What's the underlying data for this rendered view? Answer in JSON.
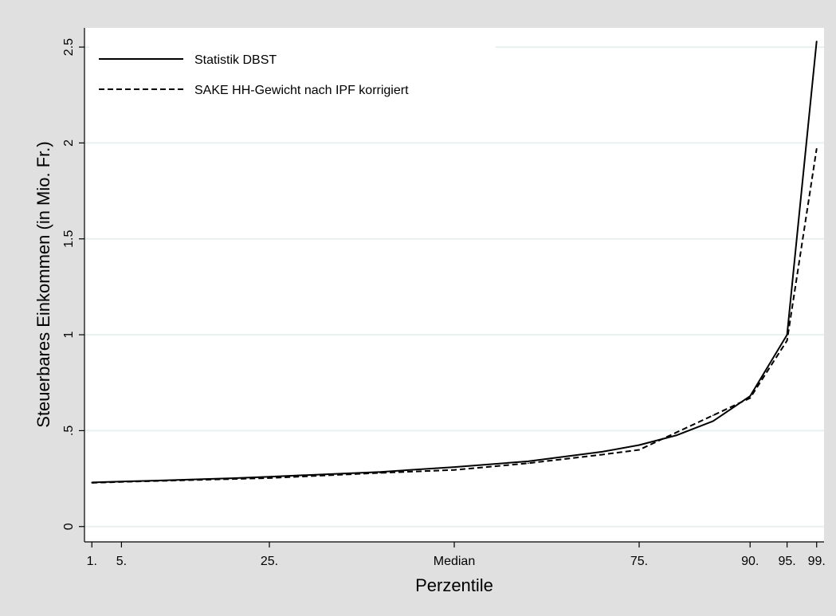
{
  "chart_data": {
    "type": "line",
    "title": "",
    "xlabel": "Perzentile",
    "ylabel": "Steuerbares Einkommen (in Mio. Fr.)",
    "x_ticks": [
      {
        "x": 1,
        "label": "1."
      },
      {
        "x": 5,
        "label": "5."
      },
      {
        "x": 25,
        "label": "25."
      },
      {
        "x": 50,
        "label": "Median"
      },
      {
        "x": 75,
        "label": "75."
      },
      {
        "x": 90,
        "label": "90."
      },
      {
        "x": 95,
        "label": "95."
      },
      {
        "x": 99,
        "label": "99."
      }
    ],
    "y_ticks": [
      {
        "y": 0,
        "label": "0"
      },
      {
        "y": 0.5,
        "label": ".5"
      },
      {
        "y": 1,
        "label": "1"
      },
      {
        "y": 1.5,
        "label": "1.5"
      },
      {
        "y": 2,
        "label": "2"
      },
      {
        "y": 2.5,
        "label": "2.5"
      }
    ],
    "xlim": [
      0,
      100
    ],
    "ylim": [
      -0.08,
      2.6
    ],
    "grid": "horizontal",
    "legend_position": "top-left",
    "series": [
      {
        "name": "Statistik DBST",
        "style": "solid",
        "x": [
          1,
          5,
          10,
          20,
          25,
          30,
          40,
          50,
          60,
          70,
          75,
          80,
          85,
          90,
          95,
          99
        ],
        "y": [
          0.23,
          0.235,
          0.24,
          0.252,
          0.26,
          0.268,
          0.285,
          0.31,
          0.34,
          0.39,
          0.425,
          0.475,
          0.55,
          0.68,
          1.0,
          2.53
        ]
      },
      {
        "name": "SAKE HH-Gewicht nach IPF korrigiert",
        "style": "dashed",
        "x": [
          1,
          5,
          10,
          20,
          25,
          30,
          40,
          50,
          60,
          70,
          75,
          80,
          85,
          90,
          95,
          99
        ],
        "y": [
          0.228,
          0.233,
          0.238,
          0.248,
          0.253,
          0.262,
          0.28,
          0.295,
          0.33,
          0.375,
          0.4,
          0.49,
          0.58,
          0.67,
          0.97,
          1.97
        ]
      }
    ],
    "colors": {
      "background": "#e0e0e0",
      "plot_area": "#ffffff",
      "grid": "#e8f0f0",
      "line": "#000000"
    }
  }
}
